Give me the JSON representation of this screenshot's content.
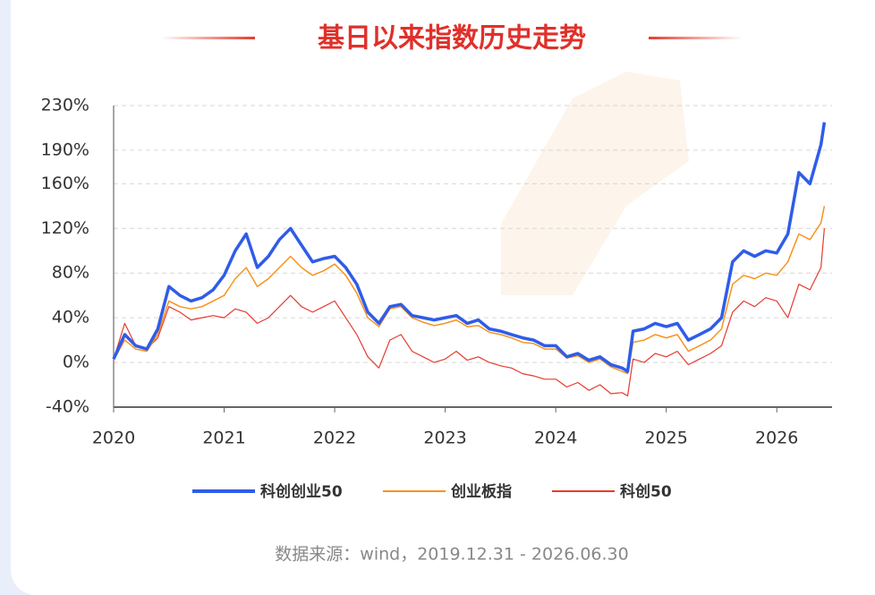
{
  "chart_data": {
    "type": "line",
    "title": "基日以来指数历史走势",
    "source": "数据来源：wind，2019.12.31 - 2026.06.30",
    "x": [
      2020.0,
      2020.1,
      2020.2,
      2020.3,
      2020.4,
      2020.5,
      2020.6,
      2020.7,
      2020.8,
      2020.9,
      2021.0,
      2021.1,
      2021.2,
      2021.3,
      2021.4,
      2021.5,
      2021.6,
      2021.7,
      2021.8,
      2021.9,
      2022.0,
      2022.1,
      2022.2,
      2022.3,
      2022.4,
      2022.5,
      2022.6,
      2022.7,
      2022.8,
      2022.9,
      2023.0,
      2023.1,
      2023.2,
      2023.3,
      2023.4,
      2023.5,
      2023.6,
      2023.7,
      2023.8,
      2023.9,
      2024.0,
      2024.1,
      2024.2,
      2024.3,
      2024.4,
      2024.5,
      2024.6,
      2024.65,
      2024.7,
      2024.8,
      2024.9,
      2025.0,
      2025.1,
      2025.2,
      2025.3,
      2025.4,
      2025.5,
      2025.6,
      2025.7,
      2025.8,
      2025.9,
      2026.0,
      2026.1,
      2026.2,
      2026.3,
      2026.4,
      2026.43
    ],
    "xlim": [
      2020,
      2026.5
    ],
    "xticks": [
      2020,
      2021,
      2022,
      2023,
      2024,
      2025,
      2026
    ],
    "ylim": [
      -40,
      230
    ],
    "yticks": [
      {
        "value": -40,
        "label": "-40%"
      },
      {
        "value": 0,
        "label": "0%"
      },
      {
        "value": 40,
        "label": "40%"
      },
      {
        "value": 80,
        "label": "80%"
      },
      {
        "value": 120,
        "label": "120%"
      },
      {
        "value": 160,
        "label": "160%"
      },
      {
        "value": 190,
        "label": "190%"
      },
      {
        "value": 230,
        "label": "230%"
      }
    ],
    "grid": true,
    "series": [
      {
        "name": "科创创业50",
        "color": "#2f5ce8",
        "width": 3.5,
        "values": [
          3,
          25,
          15,
          12,
          30,
          68,
          60,
          55,
          58,
          65,
          78,
          100,
          115,
          85,
          95,
          110,
          120,
          105,
          90,
          93,
          95,
          85,
          70,
          45,
          35,
          50,
          52,
          42,
          40,
          38,
          40,
          42,
          35,
          38,
          30,
          28,
          25,
          22,
          20,
          15,
          15,
          5,
          8,
          2,
          5,
          -2,
          -5,
          -8,
          28,
          30,
          35,
          32,
          35,
          20,
          25,
          30,
          40,
          90,
          100,
          95,
          100,
          98,
          115,
          170,
          160,
          195,
          215
        ]
      },
      {
        "name": "创业板指",
        "color": "#f7931e",
        "width": 1.5,
        "values": [
          2,
          20,
          12,
          10,
          25,
          55,
          50,
          48,
          50,
          55,
          60,
          75,
          85,
          68,
          75,
          85,
          95,
          85,
          78,
          82,
          88,
          78,
          62,
          40,
          32,
          48,
          50,
          40,
          36,
          33,
          35,
          38,
          32,
          33,
          27,
          25,
          22,
          18,
          17,
          12,
          12,
          4,
          6,
          0,
          3,
          -4,
          -8,
          -10,
          18,
          20,
          25,
          22,
          25,
          10,
          15,
          20,
          30,
          70,
          78,
          75,
          80,
          78,
          90,
          115,
          110,
          125,
          140
        ]
      },
      {
        "name": "科创50",
        "color": "#e63b2e",
        "width": 1.2,
        "values": [
          3,
          35,
          15,
          12,
          22,
          50,
          45,
          38,
          40,
          42,
          40,
          48,
          45,
          35,
          40,
          50,
          60,
          50,
          45,
          50,
          55,
          40,
          25,
          5,
          -5,
          20,
          25,
          10,
          5,
          0,
          3,
          10,
          2,
          5,
          0,
          -3,
          -5,
          -10,
          -12,
          -15,
          -15,
          -22,
          -18,
          -25,
          -20,
          -28,
          -27,
          -30,
          3,
          0,
          8,
          5,
          10,
          -2,
          3,
          8,
          15,
          45,
          55,
          50,
          58,
          55,
          40,
          70,
          65,
          85,
          120
        ]
      }
    ]
  }
}
